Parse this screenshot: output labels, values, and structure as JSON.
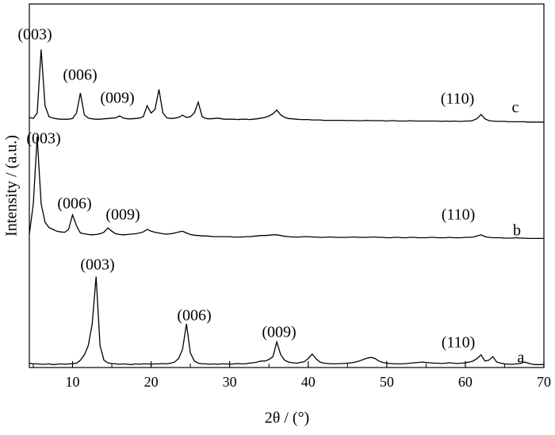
{
  "chart_data": {
    "type": "line",
    "xlabel": "2θ / (°)",
    "ylabel": "Intensity / (a.u.)",
    "xlim": [
      4.5,
      70
    ],
    "ylim": [
      0,
      100
    ],
    "xticks": [
      10,
      20,
      30,
      40,
      50,
      60,
      70
    ],
    "xminorticks": [
      5,
      15,
      25,
      35,
      45,
      55,
      65
    ],
    "line_color": "#000000",
    "x": [
      4.5,
      5,
      5.5,
      6,
      6.5,
      7,
      7.5,
      8,
      8.5,
      9,
      9.5,
      10,
      10.5,
      11,
      11.5,
      12,
      12.5,
      13,
      13.5,
      14,
      14.5,
      15,
      15.5,
      16,
      16.5,
      17,
      17.5,
      18,
      18.5,
      19,
      19.5,
      20,
      20.5,
      21,
      21.5,
      22,
      22.5,
      23,
      23.5,
      24,
      24.5,
      25,
      25.5,
      26,
      26.5,
      27,
      27.5,
      28,
      28.5,
      29,
      29.5,
      30,
      30.5,
      31,
      31.5,
      32,
      32.5,
      33,
      33.5,
      34,
      34.5,
      35,
      35.5,
      36,
      36.5,
      37,
      37.5,
      38,
      38.5,
      39,
      39.5,
      40,
      40.5,
      41,
      41.5,
      42,
      42.5,
      43,
      43.5,
      44,
      44.5,
      45,
      45.5,
      46,
      46.5,
      47,
      47.5,
      48,
      48.5,
      49,
      49.5,
      50,
      50.5,
      51,
      51.5,
      52,
      52.5,
      53,
      53.5,
      54,
      54.5,
      55,
      55.5,
      56,
      56.5,
      57,
      57.5,
      58,
      58.5,
      59,
      59.5,
      60,
      60.5,
      61,
      61.5,
      62,
      62.5,
      63,
      63.5,
      64,
      64.5,
      65,
      65.5,
      66,
      66.5,
      67,
      67.5,
      68,
      68.5,
      69,
      69.5,
      70
    ],
    "series": [
      {
        "name": "a",
        "color": "#000000",
        "values": [
          1.2,
          1,
          1,
          0.9,
          0.9,
          1,
          0.8,
          0.9,
          1,
          0.9,
          1,
          1,
          1.2,
          2,
          3.5,
          6,
          12,
          25,
          6,
          2,
          1.3,
          1.1,
          1,
          0.9,
          1,
          0.9,
          0.8,
          1,
          0.9,
          1,
          1,
          0.9,
          1,
          1,
          1.1,
          1,
          1.2,
          1.5,
          2.5,
          5,
          12,
          4,
          1.8,
          1.2,
          1,
          1,
          0.9,
          1,
          0.9,
          1,
          1,
          0.9,
          1,
          1.1,
          1,
          1,
          1.2,
          1.3,
          1.5,
          1.8,
          1.8,
          2.2,
          3,
          7,
          3.5,
          2,
          1.5,
          1.3,
          1.2,
          1.4,
          1.6,
          2.5,
          3.7,
          2.4,
          1.5,
          1.2,
          1.1,
          1,
          1,
          1.1,
          1.1,
          1.2,
          1.3,
          1.5,
          1.8,
          2.2,
          2.6,
          2.8,
          2.5,
          1.8,
          1.4,
          1.2,
          1.1,
          1,
          1,
          1,
          1.1,
          1.2,
          1.3,
          1.4,
          1.5,
          1.4,
          1.3,
          1.2,
          1.2,
          1.1,
          1.2,
          1.3,
          1.2,
          1.1,
          1.2,
          1.3,
          1.5,
          1.8,
          2.5,
          3.5,
          1.8,
          2,
          3,
          1.5,
          1.2,
          1,
          0.9,
          0.9,
          1,
          1.1,
          1.5,
          1.2,
          0.9,
          0.8,
          0.8,
          0.8
        ]
      },
      {
        "name": "b",
        "color": "#000000",
        "values": [
          36.7,
          45,
          63.5,
          45,
          40,
          38.5,
          38,
          37.5,
          37.3,
          37.2,
          38,
          42,
          39,
          37,
          36.8,
          36.6,
          36.5,
          36.6,
          36.8,
          37.2,
          38.4,
          37.5,
          36.8,
          36.6,
          36.5,
          36.6,
          36.7,
          36.8,
          37,
          37.3,
          38,
          37.5,
          37.2,
          37,
          36.8,
          36.7,
          36.8,
          37,
          37.3,
          37.5,
          37,
          36.6,
          36.4,
          36.3,
          36.2,
          36.2,
          36.1,
          36,
          36,
          36,
          36,
          36,
          35.9,
          35.9,
          35.9,
          36,
          36,
          36.1,
          36.2,
          36.3,
          36.3,
          36.4,
          36.5,
          36.5,
          36.3,
          36.1,
          36,
          35.9,
          35.9,
          35.9,
          36,
          36,
          35.9,
          35.9,
          35.8,
          35.8,
          35.9,
          35.9,
          35.8,
          35.8,
          35.8,
          35.8,
          35.9,
          35.9,
          35.8,
          35.8,
          35.8,
          35.9,
          35.9,
          35.8,
          35.8,
          35.7,
          35.7,
          35.8,
          35.8,
          35.7,
          35.7,
          35.8,
          35.8,
          35.7,
          35.7,
          35.7,
          35.8,
          35.8,
          35.7,
          35.7,
          35.7,
          35.8,
          35.7,
          35.7,
          35.7,
          35.8,
          35.8,
          35.9,
          36.2,
          36.5,
          36,
          35.8,
          35.7,
          35.7,
          35.7,
          35.6,
          35.6,
          35.6,
          35.7,
          35.6,
          35.6,
          35.5,
          35.5,
          35.5,
          35.5,
          35.5
        ]
      },
      {
        "name": "c",
        "color": "#000000",
        "values": [
          68.8,
          68.5,
          70,
          87.5,
          72,
          69,
          68.6,
          68.4,
          68.3,
          68.3,
          68.3,
          68.5,
          70,
          75.5,
          69.5,
          68.6,
          68.4,
          68.3,
          68.3,
          68.4,
          68.5,
          68.6,
          68.7,
          69.2,
          68.6,
          68.4,
          68.4,
          68.5,
          68.6,
          69,
          72,
          70,
          71,
          76.5,
          70,
          68.7,
          68.5,
          68.6,
          68.8,
          69.4,
          68.8,
          69,
          70,
          73,
          69,
          68.5,
          68.4,
          68.5,
          68.6,
          68.4,
          68.3,
          68.3,
          68.3,
          68.2,
          68.3,
          68.3,
          68.2,
          68.3,
          68.4,
          68.6,
          68.8,
          69.2,
          69.8,
          70.8,
          69.5,
          68.8,
          68.5,
          68.4,
          68.3,
          68.2,
          68.2,
          68.2,
          68.1,
          68.1,
          68.1,
          68,
          68,
          68,
          68,
          68,
          68,
          67.9,
          68,
          67.9,
          67.9,
          67.9,
          68,
          67.9,
          67.9,
          67.9,
          67.9,
          67.8,
          67.9,
          67.9,
          67.8,
          67.8,
          67.8,
          67.9,
          67.8,
          67.8,
          67.8,
          67.8,
          67.8,
          67.8,
          67.8,
          67.7,
          67.8,
          67.7,
          67.8,
          67.7,
          67.7,
          67.8,
          67.8,
          68,
          68.5,
          69.6,
          68.4,
          67.9,
          67.8,
          67.7,
          67.7,
          67.7,
          67.6,
          67.6,
          67.6,
          67.6,
          67.6,
          67.5,
          67.5,
          67.5,
          67.5,
          67.5
        ]
      }
    ],
    "annotations": [
      "(003)",
      "(006)",
      "(009)",
      "(110)",
      "(003)",
      "(006)",
      "(009)",
      "(110)",
      "(003)",
      "(006)",
      "(009)",
      "(110)"
    ]
  }
}
